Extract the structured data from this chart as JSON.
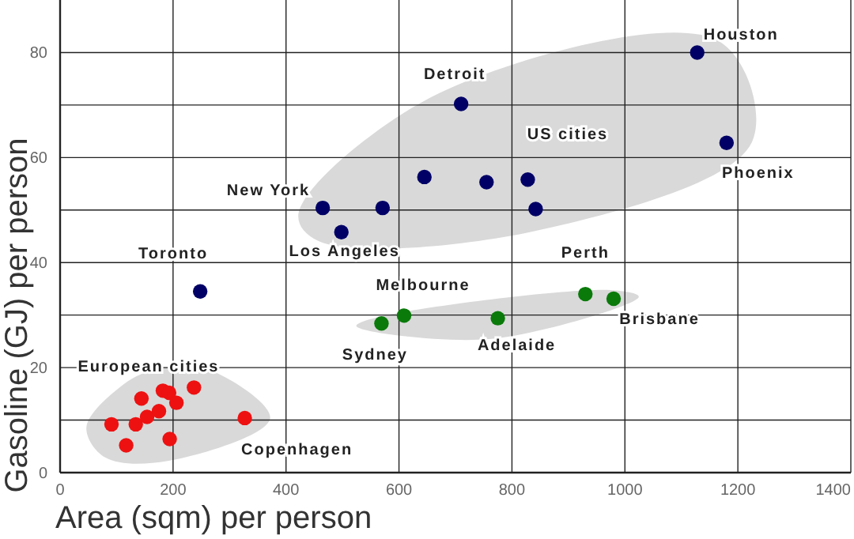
{
  "chart_data": {
    "type": "scatter",
    "xlabel": "Area (sqm)  per person",
    "ylabel": "Gasoline (GJ) per person",
    "xlim": [
      0,
      1400
    ],
    "xticks": [
      0,
      200,
      400,
      600,
      800,
      1000,
      1200,
      1400
    ],
    "ylim": [
      0,
      90
    ],
    "yticks": [
      0,
      {
        "value": 10,
        "label": null
      },
      20,
      {
        "value": 30,
        "label": null
      },
      40,
      {
        "value": 50,
        "label": null
      },
      60,
      {
        "value": 70,
        "label": null
      },
      80
    ],
    "grid": true,
    "marker": "circle",
    "legend": false,
    "series": [
      {
        "name": "US cities",
        "color": "#000066",
        "x": [
          1128,
          1180,
          710,
          645,
          755,
          828,
          842,
          465,
          571,
          498
        ],
        "values": [
          80,
          62.8,
          70.2,
          56.3,
          55.3,
          55.8,
          50.2,
          50.4,
          50.4,
          45.8
        ]
      },
      {
        "color": "#000066",
        "x": [
          248
        ],
        "values": [
          34.5
        ]
      },
      {
        "color": "#0a7a0a",
        "x": [
          569,
          609,
          775,
          930,
          980
        ],
        "values": [
          28.4,
          29.9,
          29.4,
          34,
          33.1
        ]
      },
      {
        "name": "European cities",
        "color": "#ee1111",
        "x": [
          91,
          117,
          134,
          144,
          154,
          175,
          182,
          193,
          206,
          194,
          237,
          327
        ],
        "values": [
          9.2,
          5.2,
          9.2,
          14.1,
          10.6,
          11.7,
          15.6,
          15.2,
          13.3,
          6.4,
          16.2,
          10.4
        ]
      }
    ],
    "annotations": [
      {
        "text": "Houston",
        "x": 1128,
        "y": 80
      },
      {
        "text": "Phoenix",
        "x": 1180,
        "y": 62.8
      },
      {
        "text": "Detroit",
        "x": 710,
        "y": 70.2
      },
      {
        "text": "New York",
        "x": 465,
        "y": 50.4
      },
      {
        "text": "Los Angeles",
        "x": 498,
        "y": 45.8
      },
      {
        "text": "Toronto",
        "x": 248,
        "y": 34.5
      },
      {
        "text": "Sydney",
        "x": 569,
        "y": 28.4
      },
      {
        "text": "Melbourne",
        "x": 609,
        "y": 29.9
      },
      {
        "text": "Adelaide",
        "x": 775,
        "y": 29.4
      },
      {
        "text": "Perth",
        "x": 930,
        "y": 34
      },
      {
        "text": "Brisbane",
        "x": 980,
        "y": 33.1
      },
      {
        "text": "Copenhagen",
        "x": 327,
        "y": 10.4
      }
    ]
  }
}
